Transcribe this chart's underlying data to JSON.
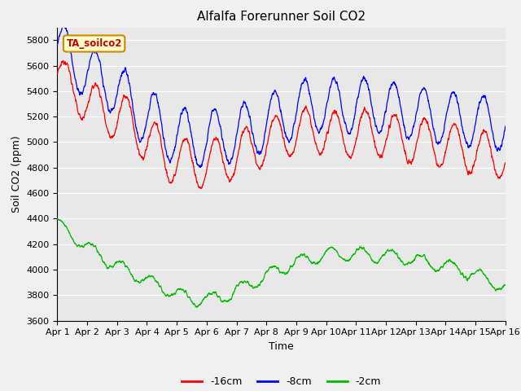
{
  "title": "Alfalfa Forerunner Soil CO2",
  "xlabel": "Time",
  "ylabel": "Soil CO2 (ppm)",
  "ylim": [
    3600,
    5900
  ],
  "yticks": [
    3600,
    3800,
    4000,
    4200,
    4400,
    4600,
    4800,
    5000,
    5200,
    5400,
    5600,
    5800
  ],
  "xtick_labels": [
    "Apr 1",
    "Apr 2",
    "Apr 3",
    "Apr 4",
    "Apr 5",
    "Apr 6",
    "Apr 7",
    "Apr 8",
    "Apr 9",
    "Apr 10",
    "Apr 11",
    "Apr 12",
    "Apr 13",
    "Apr 14",
    "Apr 15",
    "Apr 16"
  ],
  "legend_labels": [
    "-16cm",
    "-8cm",
    "-2cm"
  ],
  "line_colors": [
    "#ff0000",
    "#0000ff",
    "#00bb00"
  ],
  "annotation_text": "TA_soilco2",
  "annotation_facecolor": "#ffffcc",
  "annotation_edgecolor": "#cc8800",
  "annotation_textcolor": "#cc0000",
  "background_color": "#e8e8e8",
  "fig_background": "#f0f0f0",
  "grid_color": "#ffffff",
  "title_fontsize": 11,
  "axis_fontsize": 9,
  "tick_fontsize": 8
}
